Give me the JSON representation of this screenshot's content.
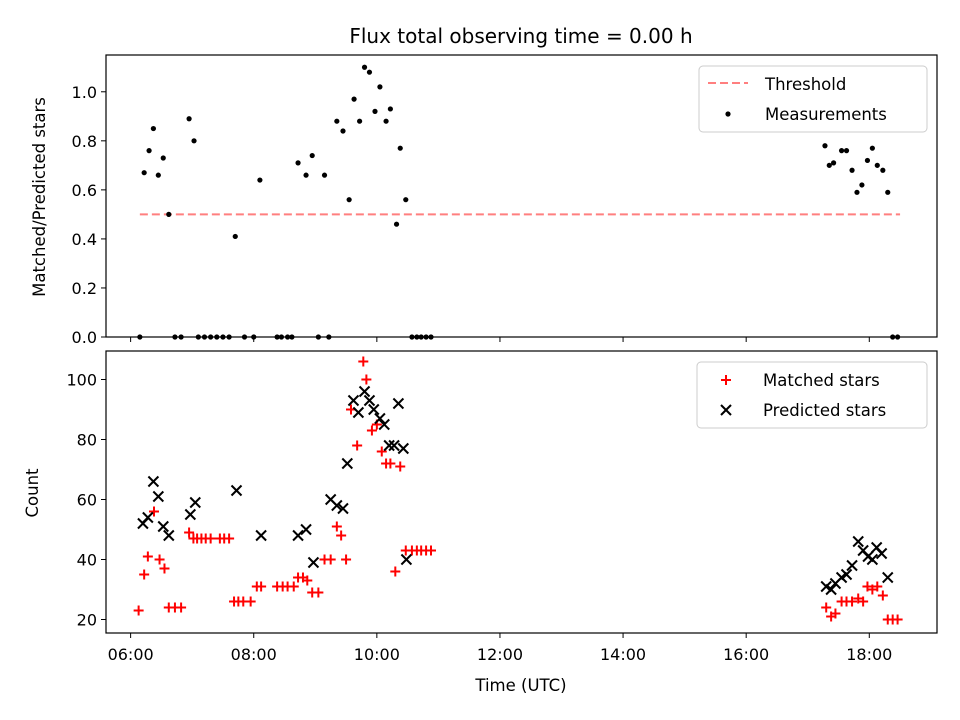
{
  "chart_data": [
    {
      "type": "scatter",
      "title": "Flux total observing time = 0.00 h",
      "xlabel": "",
      "ylabel": "Matched/Predicted stars",
      "xlim": [
        5.6,
        19.1
      ],
      "ylim": [
        0.0,
        1.15
      ],
      "yticks": [
        "0.0",
        "0.2",
        "0.4",
        "0.6",
        "0.8",
        "1.0"
      ],
      "grid": false,
      "legend_position": "top-right",
      "colors": {
        "threshold": "#ff7f7f",
        "measurements": "#000000"
      },
      "threshold": {
        "name": "Threshold",
        "value": 0.5,
        "x_range": [
          6.15,
          18.5
        ]
      },
      "series": [
        {
          "name": "Measurements",
          "x": [
            6.15,
            6.22,
            6.3,
            6.37,
            6.45,
            6.53,
            6.62,
            6.72,
            6.82,
            6.95,
            7.03,
            7.1,
            7.2,
            7.3,
            7.4,
            7.5,
            7.6,
            7.7,
            7.85,
            8.0,
            8.1,
            8.38,
            8.45,
            8.55,
            8.62,
            8.72,
            8.85,
            8.95,
            9.05,
            9.15,
            9.22,
            9.35,
            9.45,
            9.55,
            9.63,
            9.72,
            9.8,
            9.88,
            9.97,
            10.05,
            10.15,
            10.22,
            10.32,
            10.38,
            10.47,
            10.57,
            10.65,
            10.72,
            10.8,
            10.88,
            17.28,
            17.35,
            17.42,
            17.55,
            17.63,
            17.72,
            17.8,
            17.88,
            17.97,
            18.05,
            18.13,
            18.22,
            18.3,
            18.38,
            18.46
          ],
          "y": [
            0.0,
            0.67,
            0.76,
            0.85,
            0.66,
            0.73,
            0.5,
            0.0,
            0.0,
            0.89,
            0.8,
            0.0,
            0.0,
            0.0,
            0.0,
            0.0,
            0.0,
            0.41,
            0.0,
            0.0,
            0.64,
            0.0,
            0.0,
            0.0,
            0.0,
            0.71,
            0.66,
            0.74,
            0.0,
            0.66,
            0.0,
            0.88,
            0.84,
            0.56,
            0.97,
            0.88,
            1.1,
            1.08,
            0.92,
            1.02,
            0.88,
            0.93,
            0.46,
            0.77,
            0.56,
            0.0,
            0.0,
            0.0,
            0.0,
            0.0,
            0.78,
            0.7,
            0.71,
            0.76,
            0.76,
            0.68,
            0.59,
            0.62,
            0.72,
            0.77,
            0.7,
            0.68,
            0.59,
            0.0,
            0.0
          ]
        }
      ]
    },
    {
      "type": "scatter",
      "title": "",
      "xlabel": "Time (UTC)",
      "ylabel": "Count",
      "xlim": [
        5.6,
        19.1
      ],
      "ylim": [
        15.5,
        109.5
      ],
      "yticks": [
        "20",
        "40",
        "60",
        "80",
        "100"
      ],
      "xticks": [
        "06:00",
        "08:00",
        "10:00",
        "12:00",
        "14:00",
        "16:00",
        "18:00"
      ],
      "grid": false,
      "legend_position": "top-right",
      "colors": {
        "matched": "#ff0000",
        "predicted": "#000000"
      },
      "series": [
        {
          "name": "Matched stars",
          "marker": "+",
          "x": [
            6.13,
            6.22,
            6.28,
            6.38,
            6.47,
            6.55,
            6.62,
            6.72,
            6.82,
            6.95,
            7.02,
            7.08,
            7.15,
            7.22,
            7.3,
            7.45,
            7.52,
            7.6,
            7.68,
            7.75,
            7.83,
            7.95,
            8.05,
            8.12,
            8.38,
            8.47,
            8.55,
            8.65,
            8.72,
            8.8,
            8.87,
            8.95,
            9.05,
            9.15,
            9.25,
            9.35,
            9.42,
            9.5,
            9.58,
            9.68,
            9.78,
            9.83,
            9.92,
            10.0,
            10.08,
            10.15,
            10.22,
            10.3,
            10.38,
            10.47,
            10.57,
            10.65,
            10.72,
            10.8,
            10.88,
            17.3,
            17.38,
            17.45,
            17.55,
            17.63,
            17.72,
            17.82,
            17.9,
            17.97,
            18.05,
            18.13,
            18.22,
            18.3,
            18.38,
            18.46
          ],
          "y": [
            23,
            35,
            41,
            56,
            40,
            37,
            24,
            24,
            24,
            49,
            47,
            47,
            47,
            47,
            47,
            47,
            47,
            47,
            26,
            26,
            26,
            26,
            31,
            31,
            31,
            31,
            31,
            31,
            34,
            34,
            33,
            29,
            29,
            40,
            40,
            51,
            48,
            40,
            90,
            78,
            106,
            100,
            83,
            85,
            76,
            72,
            72,
            36,
            71,
            43,
            43,
            43,
            43,
            43,
            43,
            24,
            21,
            22,
            26,
            26,
            26,
            27,
            26,
            31,
            30,
            31,
            28,
            20,
            20,
            20
          ]
        },
        {
          "name": "Predicted stars",
          "marker": "x",
          "x": [
            6.2,
            6.28,
            6.37,
            6.45,
            6.53,
            6.62,
            6.97,
            7.05,
            7.72,
            8.12,
            8.72,
            8.85,
            8.97,
            9.25,
            9.35,
            9.45,
            9.52,
            9.62,
            9.7,
            9.8,
            9.88,
            9.95,
            10.05,
            10.12,
            10.2,
            10.28,
            10.35,
            10.43,
            10.48,
            17.3,
            17.38,
            17.45,
            17.55,
            17.63,
            17.72,
            17.82,
            17.9,
            17.98,
            18.05,
            18.12,
            18.2,
            18.3
          ],
          "y": [
            52,
            54,
            66,
            61,
            51,
            48,
            55,
            59,
            63,
            48,
            48,
            50,
            39,
            60,
            58,
            57,
            72,
            93,
            89,
            96,
            93,
            90,
            87,
            85,
            78,
            78,
            92,
            77,
            40,
            31,
            30,
            32,
            34,
            35,
            38,
            46,
            43,
            41,
            40,
            44,
            42,
            34
          ]
        }
      ]
    }
  ]
}
